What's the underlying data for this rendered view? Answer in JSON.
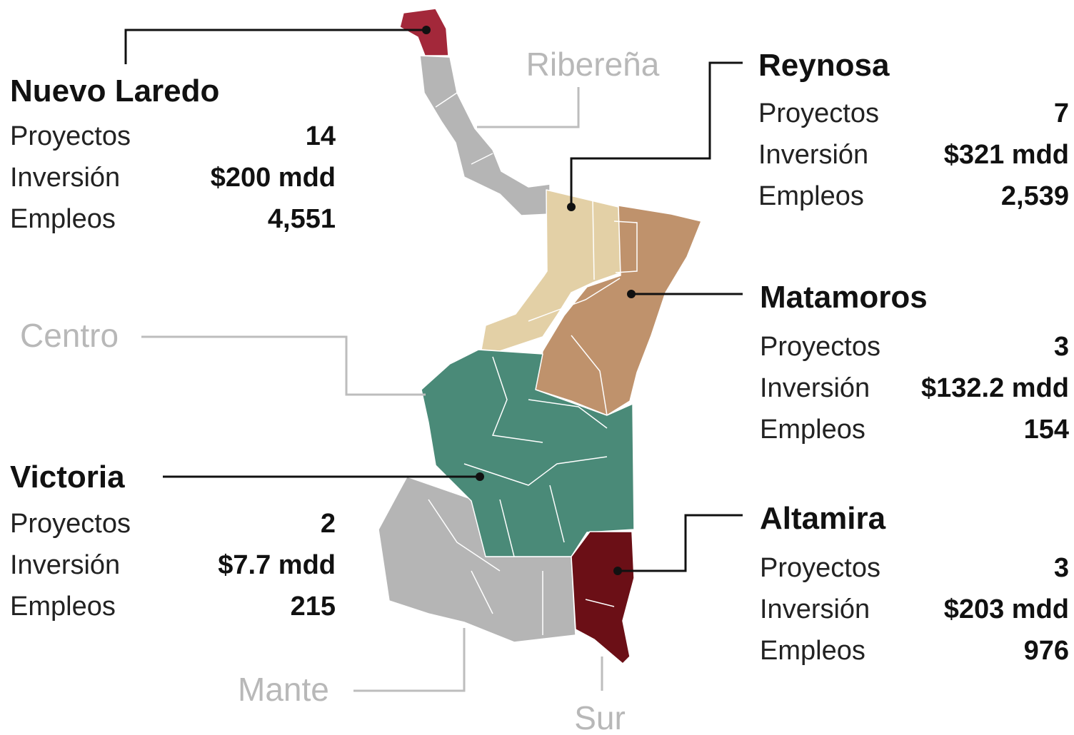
{
  "regions": [
    {
      "name": "Nuevo Laredo",
      "rows": [
        {
          "label": "Proyectos",
          "value": "14"
        },
        {
          "label": "Inversión",
          "value": "$200 mdd"
        },
        {
          "label": "Empleos",
          "value": "4,551"
        }
      ]
    },
    {
      "name": "Reynosa",
      "rows": [
        {
          "label": "Proyectos",
          "value": "7"
        },
        {
          "label": "Inversión",
          "value": "$321 mdd"
        },
        {
          "label": "Empleos",
          "value": "2,539"
        }
      ]
    },
    {
      "name": "Matamoros",
      "rows": [
        {
          "label": "Proyectos",
          "value": "3"
        },
        {
          "label": "Inversión",
          "value": "$132.2 mdd"
        },
        {
          "label": "Empleos",
          "value": "154"
        }
      ]
    },
    {
      "name": "Victoria",
      "rows": [
        {
          "label": "Proyectos",
          "value": "2"
        },
        {
          "label": "Inversión",
          "value": "$7.7 mdd"
        },
        {
          "label": "Empleos",
          "value": "215"
        }
      ]
    },
    {
      "name": "Altamira",
      "rows": [
        {
          "label": "Proyectos",
          "value": "3"
        },
        {
          "label": "Inversión",
          "value": "$203 mdd"
        },
        {
          "label": "Empleos",
          "value": "976"
        }
      ]
    }
  ],
  "zones": [
    "Ribereña",
    "Centro",
    "Mante",
    "Sur"
  ]
}
